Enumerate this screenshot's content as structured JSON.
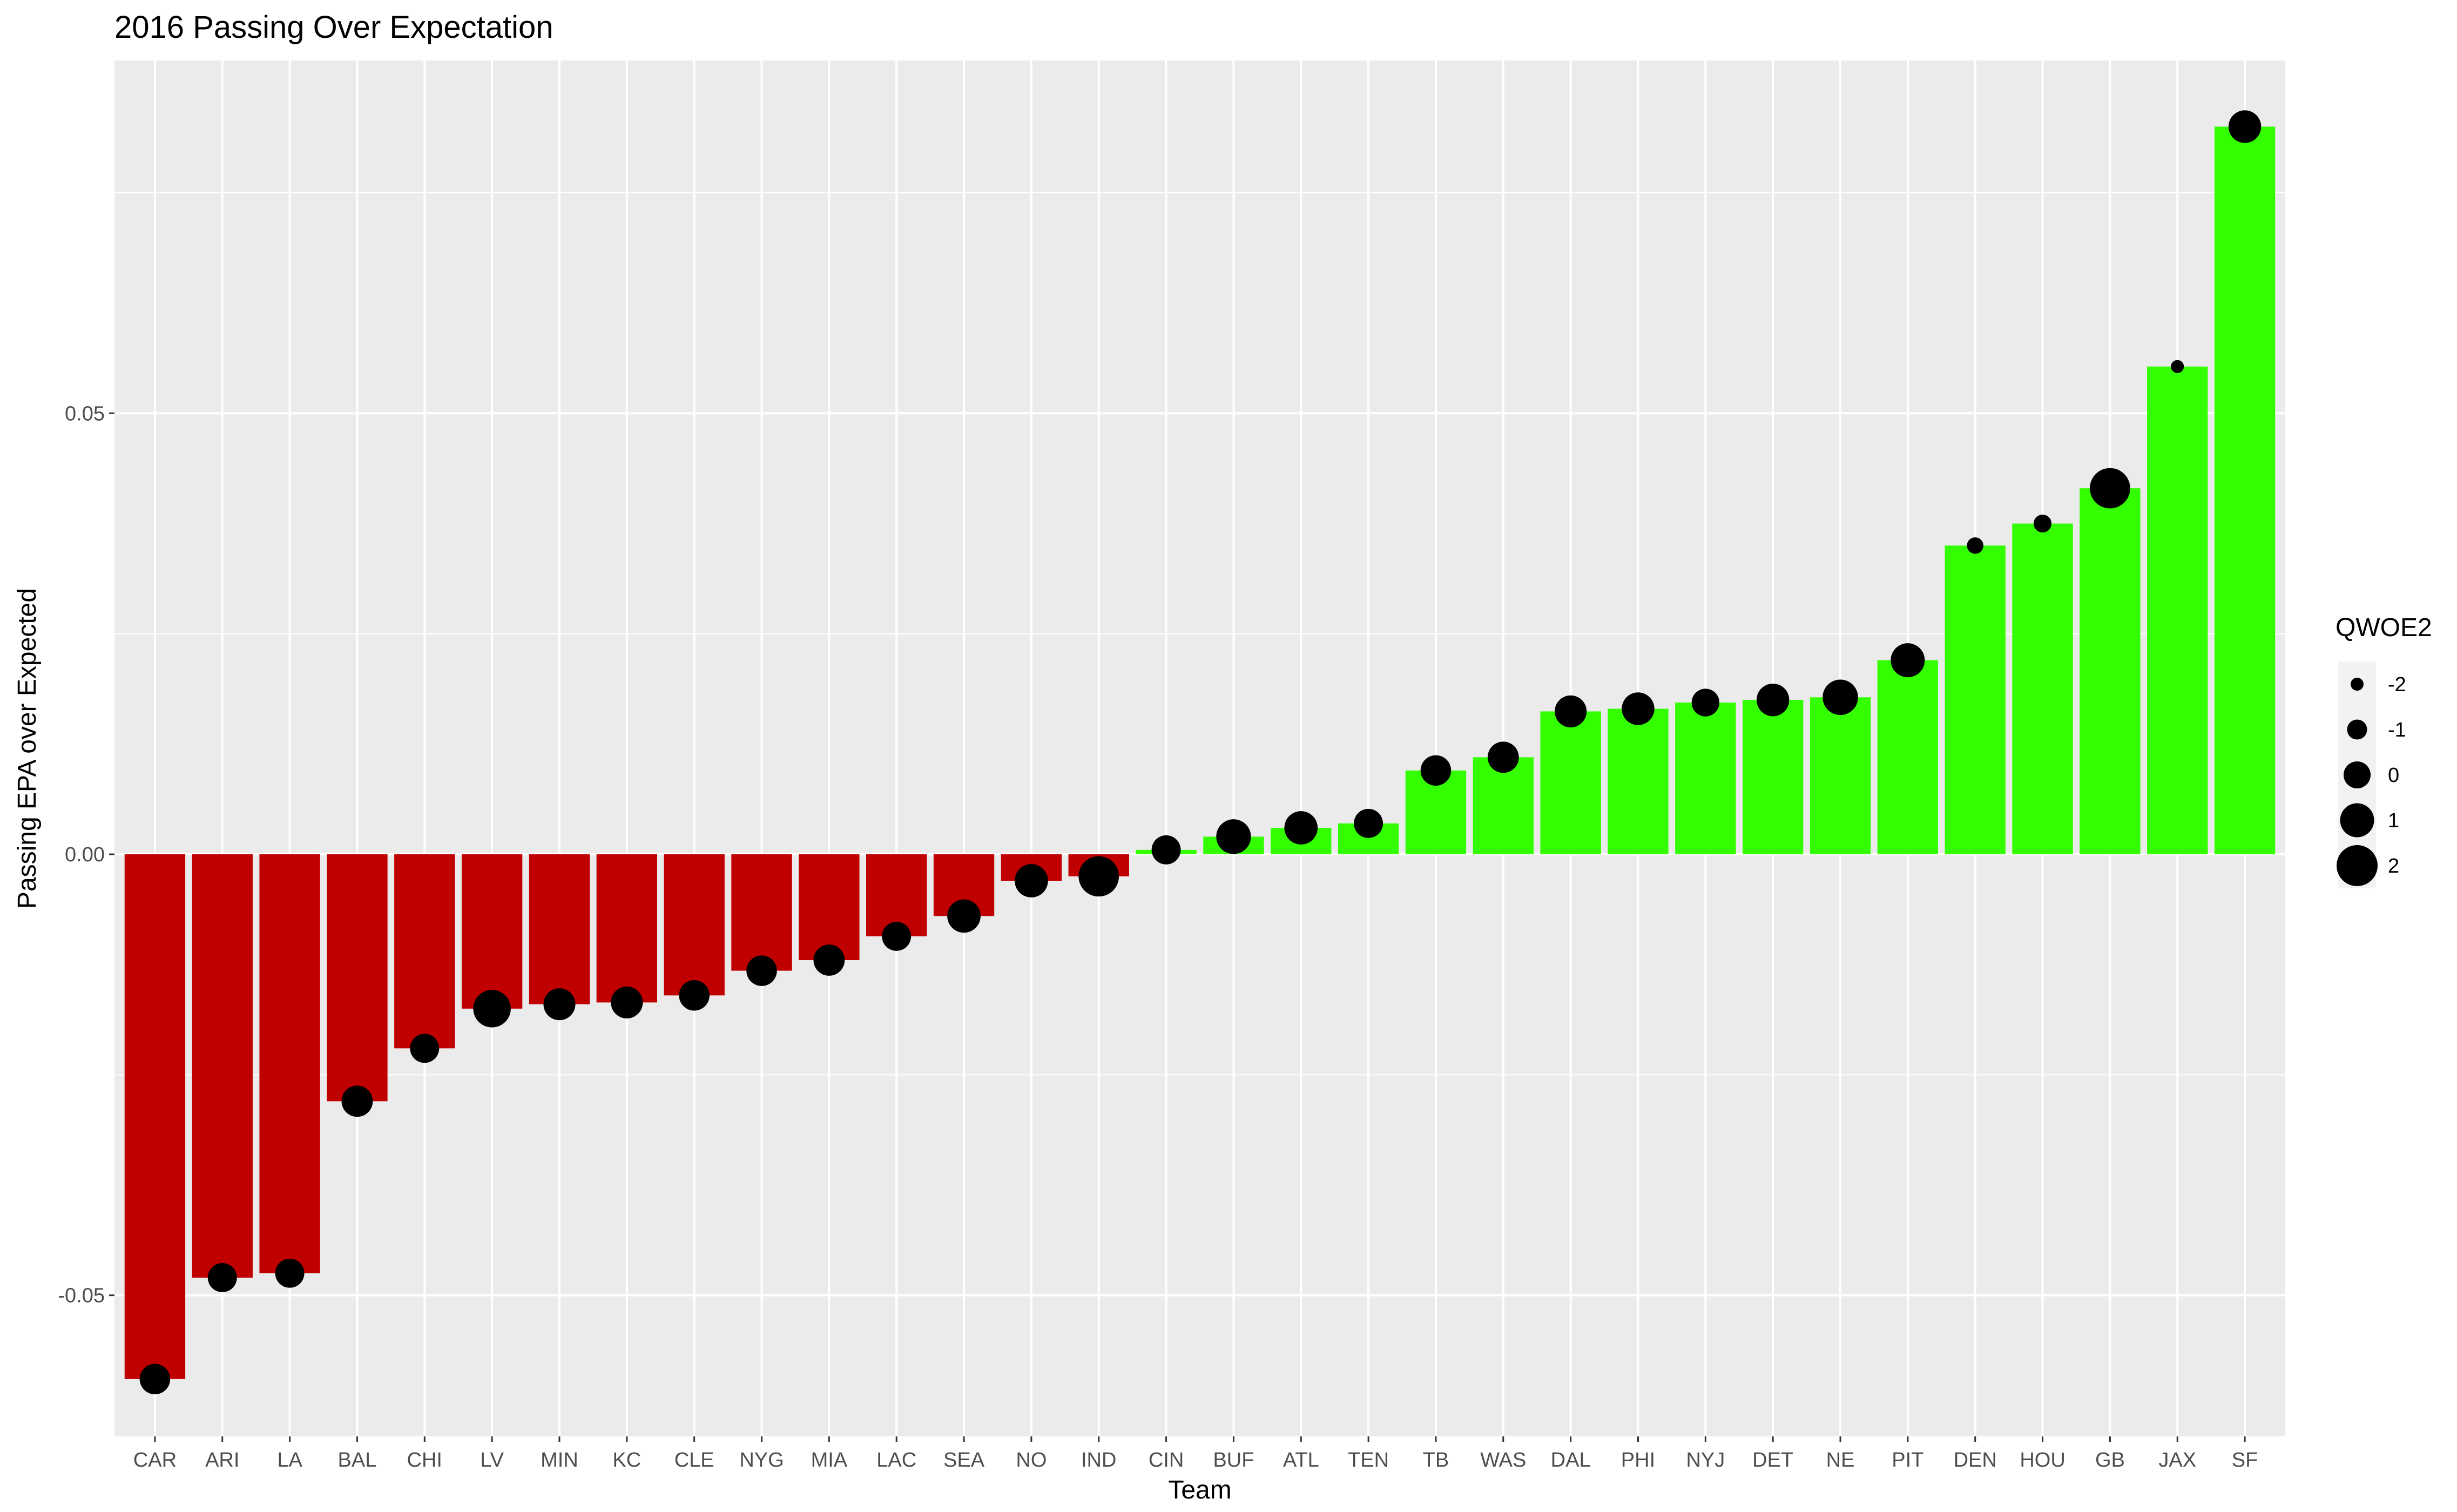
{
  "chart_data": {
    "type": "bar",
    "title": "2016 Passing Over Expectation",
    "xlabel": "Team",
    "ylabel": "Passing EPA over Expected",
    "ylim": [
      -0.066,
      0.09
    ],
    "yticks": [
      {
        "value": -0.05,
        "label": "-0.05"
      },
      {
        "value": 0.0,
        "label": "0.00"
      },
      {
        "value": 0.05,
        "label": "0.05"
      }
    ],
    "grid": true,
    "colors": {
      "negative": "#C00000",
      "positive": "#33FF00",
      "panel": "#EBEBEB",
      "grid": "#FFFFFF",
      "point": "#000000"
    },
    "categories": [
      "CAR",
      "ARI",
      "LA",
      "BAL",
      "CHI",
      "LV",
      "MIN",
      "KC",
      "CLE",
      "NYG",
      "MIA",
      "LAC",
      "SEA",
      "NO",
      "IND",
      "CIN",
      "BUF",
      "ATL",
      "TEN",
      "TB",
      "WAS",
      "DAL",
      "PHI",
      "NYJ",
      "DET",
      "NE",
      "PIT",
      "DEN",
      "HOU",
      "GB",
      "JAX",
      "SF"
    ],
    "values": [
      -0.0595,
      -0.048,
      -0.0475,
      -0.028,
      -0.022,
      -0.0175,
      -0.017,
      -0.0168,
      -0.016,
      -0.0132,
      -0.012,
      -0.0093,
      -0.007,
      -0.003,
      -0.0025,
      0.0005,
      0.002,
      0.003,
      0.0035,
      0.0095,
      0.011,
      0.0162,
      0.0165,
      0.0172,
      0.0175,
      0.0178,
      0.022,
      0.035,
      0.0375,
      0.0415,
      0.0553,
      0.0825
    ],
    "qwoe2": [
      0.5,
      0.3,
      0.3,
      0.6,
      0.3,
      1.5,
      0.7,
      0.7,
      0.5,
      0.5,
      0.6,
      0.3,
      0.9,
      0.9,
      1.9,
      0.3,
      1.1,
      0.9,
      0.3,
      0.5,
      0.6,
      0.7,
      0.8,
      0.1,
      0.8,
      1.2,
      1.0,
      -1.5,
      -1.3,
      1.9,
      -2.0,
      0.8
    ],
    "legend": {
      "title": "QWOE2",
      "position": "right",
      "entries": [
        {
          "value": -2,
          "label": "-2"
        },
        {
          "value": -1,
          "label": "-1"
        },
        {
          "value": 0,
          "label": "0"
        },
        {
          "value": 1,
          "label": "1"
        },
        {
          "value": 2,
          "label": "2"
        }
      ]
    }
  }
}
